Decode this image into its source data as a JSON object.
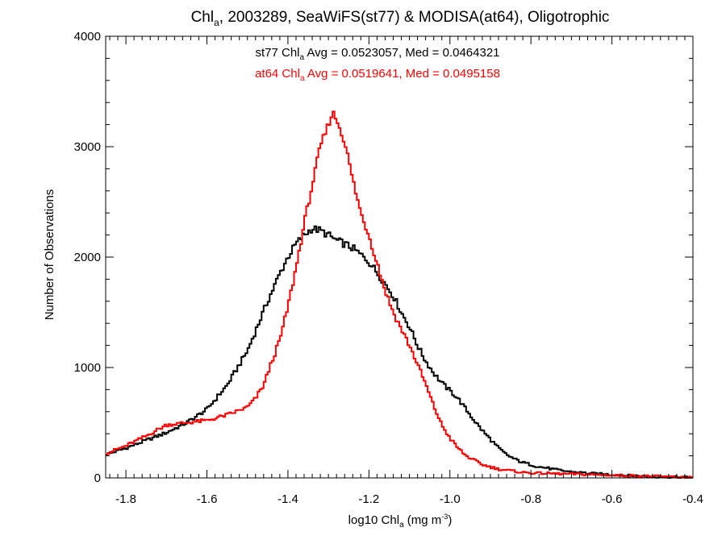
{
  "chart_data": {
    "type": "line",
    "title": {
      "pre": "Chl",
      "sub": "a",
      "post": ", 2003289, SeaWiFS(st77) & MODISA(at64), Oligotrophic"
    },
    "xlabel": {
      "pre": "log10 Chl",
      "sub": "a",
      "mid": " (mg m",
      "sup": "-3",
      "post": ")"
    },
    "ylabel": "Number of Observations",
    "xlim": [
      -1.85,
      -0.4
    ],
    "ylim": [
      0,
      4000
    ],
    "xticks": [
      "-1.8",
      "-1.6",
      "-1.4",
      "-1.2",
      "-1.0",
      "-0.8",
      "-0.6",
      "-0.4"
    ],
    "yticks": [
      "0",
      "1000",
      "2000",
      "3000",
      "4000"
    ],
    "grid": false,
    "series": [
      {
        "color": "#000000",
        "stats": {
          "pre": "st77 Chl",
          "sub": "a",
          "post": " Avg = 0.0523057, Med = 0.0464321"
        },
        "x": [
          -1.85,
          -1.8,
          -1.75,
          -1.7,
          -1.65,
          -1.6,
          -1.55,
          -1.5,
          -1.45,
          -1.42,
          -1.4,
          -1.38,
          -1.36,
          -1.34,
          -1.32,
          -1.3,
          -1.28,
          -1.26,
          -1.24,
          -1.22,
          -1.2,
          -1.18,
          -1.16,
          -1.14,
          -1.12,
          -1.1,
          -1.08,
          -1.06,
          -1.04,
          -1.02,
          -1.0,
          -0.98,
          -0.96,
          -0.94,
          -0.92,
          -0.9,
          -0.88,
          -0.86,
          -0.84,
          -0.82,
          -0.8,
          -0.78,
          -0.76,
          -0.74,
          -0.72,
          -0.7,
          -0.65,
          -0.6,
          -0.55,
          -0.5,
          -0.45,
          -0.4
        ],
        "y": [
          210,
          270,
          340,
          410,
          500,
          620,
          840,
          1150,
          1600,
          1850,
          2000,
          2120,
          2200,
          2260,
          2240,
          2200,
          2150,
          2120,
          2080,
          2020,
          1960,
          1860,
          1760,
          1650,
          1500,
          1370,
          1200,
          1060,
          950,
          860,
          790,
          720,
          620,
          520,
          430,
          350,
          270,
          210,
          170,
          140,
          120,
          100,
          90,
          75,
          65,
          55,
          40,
          30,
          20,
          12,
          8,
          5
        ]
      },
      {
        "color": "#ff0000",
        "stats": {
          "pre": "at64 Chl",
          "sub": "a",
          "post": " Avg = 0.0519641, Med = 0.0495158"
        },
        "x": [
          -1.85,
          -1.8,
          -1.75,
          -1.7,
          -1.65,
          -1.6,
          -1.55,
          -1.5,
          -1.48,
          -1.46,
          -1.44,
          -1.42,
          -1.4,
          -1.38,
          -1.36,
          -1.34,
          -1.32,
          -1.3,
          -1.29,
          -1.28,
          -1.26,
          -1.24,
          -1.22,
          -1.2,
          -1.18,
          -1.16,
          -1.14,
          -1.12,
          -1.1,
          -1.08,
          -1.06,
          -1.04,
          -1.02,
          -1.0,
          -0.98,
          -0.96,
          -0.94,
          -0.92,
          -0.9,
          -0.88,
          -0.86,
          -0.84,
          -0.82,
          -0.8,
          -0.75,
          -0.7,
          -0.65,
          -0.6,
          -0.55,
          -0.5,
          -0.45,
          -0.4
        ],
        "y": [
          220,
          290,
          380,
          480,
          500,
          520,
          570,
          640,
          720,
          840,
          1050,
          1250,
          1550,
          1900,
          2300,
          2650,
          3000,
          3200,
          3310,
          3250,
          3050,
          2700,
          2400,
          2200,
          1950,
          1700,
          1500,
          1350,
          1200,
          1030,
          850,
          650,
          480,
          360,
          270,
          200,
          160,
          120,
          100,
          80,
          70,
          60,
          50,
          45,
          40,
          35,
          30,
          25,
          20,
          15,
          8,
          5
        ]
      }
    ]
  }
}
